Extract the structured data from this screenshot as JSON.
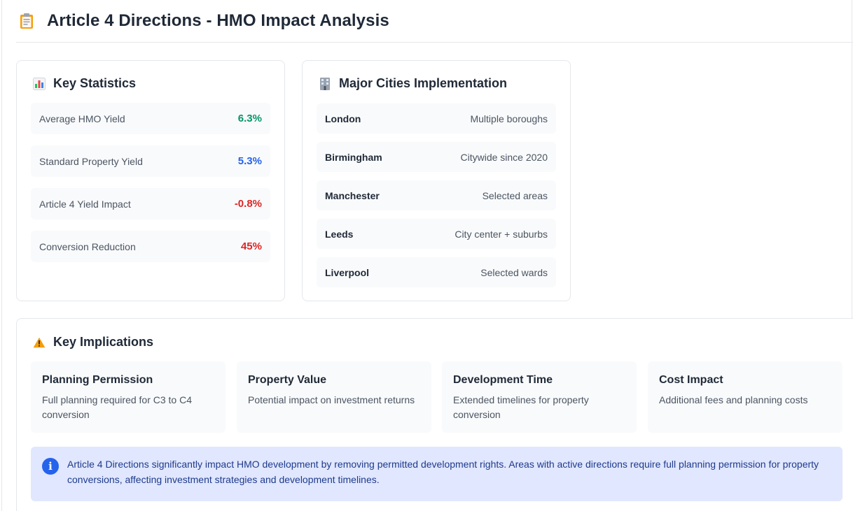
{
  "header": {
    "title": "Article 4 Directions - HMO Impact Analysis",
    "icon": "clipboard-icon"
  },
  "key_statistics": {
    "title": "Key Statistics",
    "icon": "bar-chart-icon",
    "items": [
      {
        "label": "Average HMO Yield",
        "value": "6.3%",
        "color": "#059669"
      },
      {
        "label": "Standard Property Yield",
        "value": "5.3%",
        "color": "#2563eb"
      },
      {
        "label": "Article 4 Yield Impact",
        "value": "-0.8%",
        "color": "#dc2626"
      },
      {
        "label": "Conversion Reduction",
        "value": "45%",
        "color": "#dc2626"
      }
    ]
  },
  "major_cities": {
    "title": "Major Cities Implementation",
    "icon": "office-building-icon",
    "items": [
      {
        "city": "London",
        "status": "Multiple boroughs"
      },
      {
        "city": "Birmingham",
        "status": "Citywide since 2020"
      },
      {
        "city": "Manchester",
        "status": "Selected areas"
      },
      {
        "city": "Leeds",
        "status": "City center + suburbs"
      },
      {
        "city": "Liverpool",
        "status": "Selected wards"
      }
    ]
  },
  "key_implications": {
    "title": "Key Implications",
    "icon": "warning-icon",
    "items": [
      {
        "title": "Planning Permission",
        "description": "Full planning required for C3 to C4 conversion"
      },
      {
        "title": "Property Value",
        "description": "Potential impact on investment returns"
      },
      {
        "title": "Development Time",
        "description": "Extended timelines for property conversion"
      },
      {
        "title": "Cost Impact",
        "description": "Additional fees and planning costs"
      }
    ],
    "info": {
      "icon": "info-icon",
      "text": "Article 4 Directions significantly impact HMO development by removing permitted development rights. Areas with active directions require full planning permission for property conversions, affecting investment strategies and development timelines."
    }
  },
  "colors": {
    "positive": "#059669",
    "neutral": "#2563eb",
    "negative": "#dc2626",
    "info_bg": "#e0e7ff"
  }
}
